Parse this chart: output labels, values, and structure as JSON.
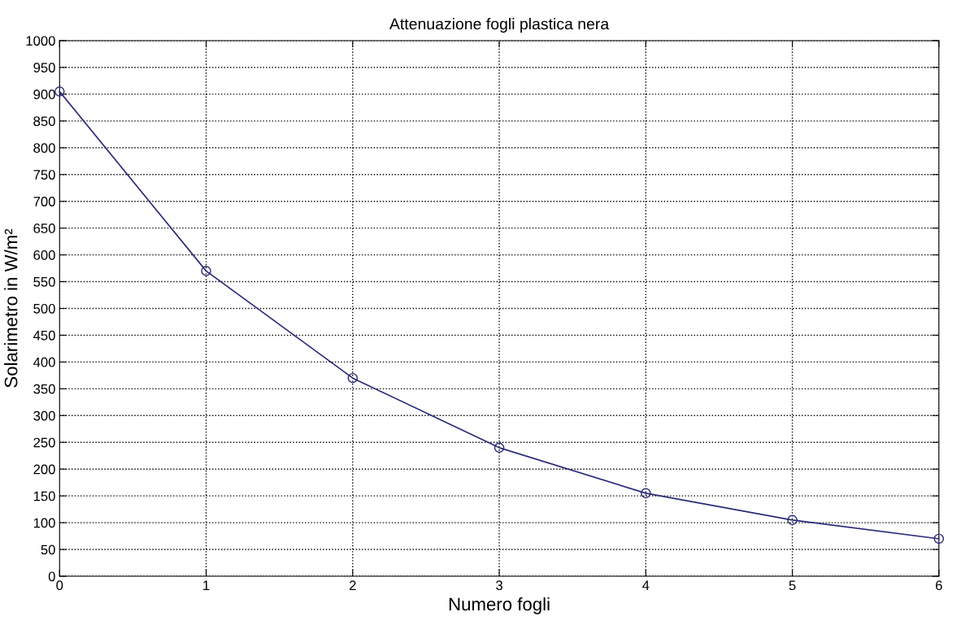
{
  "chart_data": {
    "type": "line",
    "title": "Attenuazione fogli plastica nera",
    "xlabel": "Numero fogli",
    "ylabel": "Solarimetro in W/m²",
    "x": [
      0,
      1,
      2,
      3,
      4,
      5,
      6
    ],
    "series": [
      {
        "color": "#2b2b7a",
        "values": [
          905,
          570,
          370,
          240,
          155,
          105,
          70
        ]
      }
    ],
    "xlim": [
      0,
      6
    ],
    "xticks": [
      0,
      1,
      2,
      3,
      4,
      5,
      6
    ],
    "ylim": [
      0,
      1000
    ],
    "yticks": [
      0,
      50,
      100,
      150,
      200,
      250,
      300,
      350,
      400,
      450,
      500,
      550,
      600,
      650,
      700,
      750,
      800,
      850,
      900,
      950,
      1000
    ],
    "grid": true,
    "marker": "circle",
    "line_style": "solid"
  }
}
